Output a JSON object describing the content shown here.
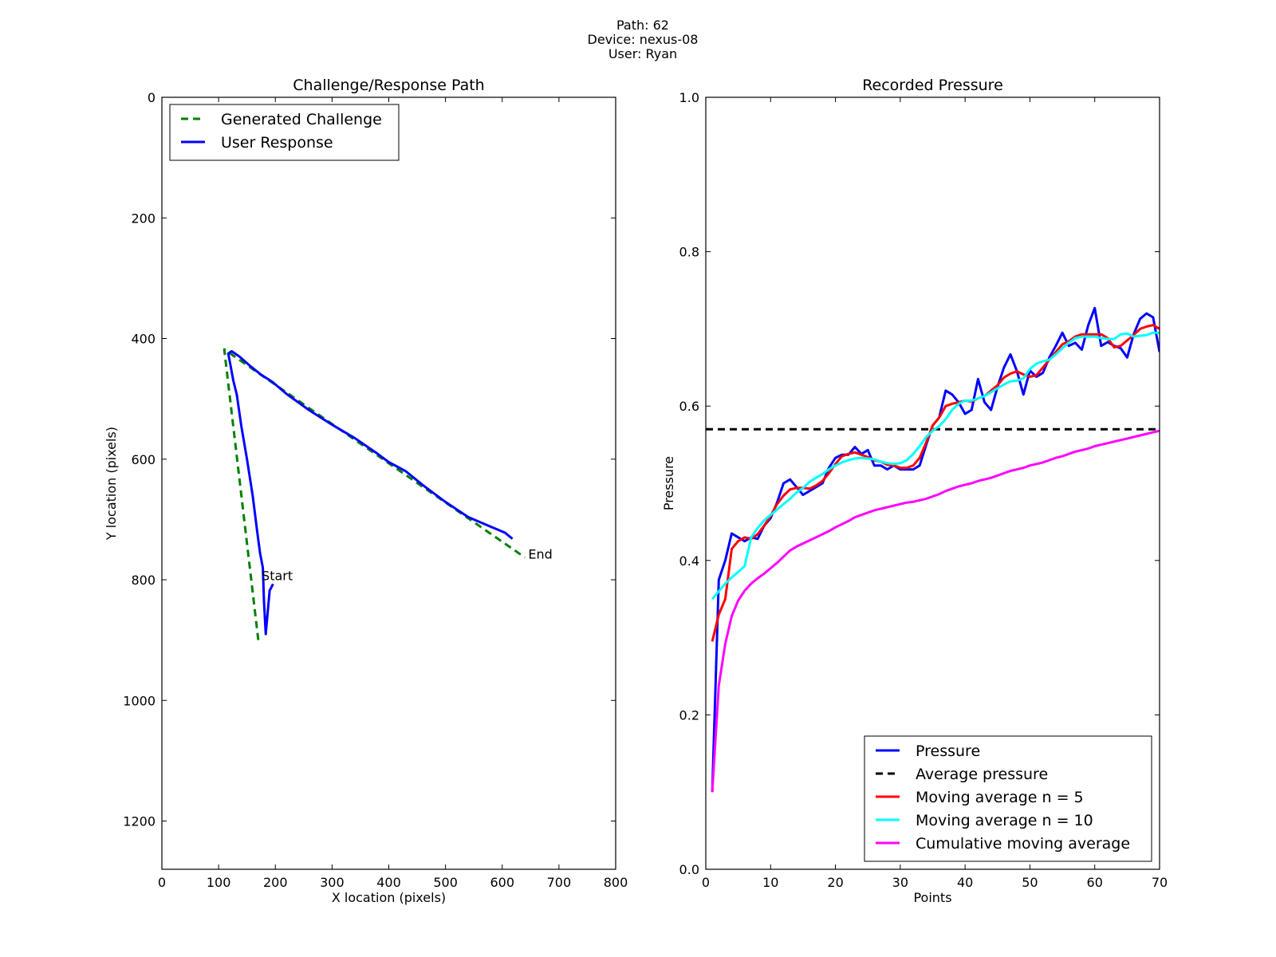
{
  "figure": {
    "suptitle_lines": [
      "Path: 62",
      "Device: nexus-08",
      "User: Ryan"
    ]
  },
  "chart_data": [
    {
      "type": "line",
      "title": "Challenge/Response Path",
      "xlabel": "X location (pixels)",
      "ylabel": "Y location (pixels)",
      "xlim": [
        0,
        800
      ],
      "ylim": [
        1280,
        0
      ],
      "y_inverted": true,
      "xticks": [
        0,
        100,
        200,
        300,
        400,
        500,
        600,
        700,
        800
      ],
      "yticks": [
        0,
        200,
        400,
        600,
        800,
        1000,
        1200
      ],
      "legend_position": "top-left",
      "series": [
        {
          "name": "Generated Challenge",
          "color": "#008000",
          "dash": "dashed",
          "points": [
            [
              170,
              900
            ],
            [
              110,
              418
            ],
            [
              640,
              763
            ]
          ]
        },
        {
          "name": "User Response",
          "color": "#0000ff",
          "dash": "solid",
          "points": [
            [
              196,
              807
            ],
            [
              190,
              818
            ],
            [
              183,
              890
            ],
            [
              180,
              835
            ],
            [
              178,
              780
            ],
            [
              173,
              755
            ],
            [
              168,
              720
            ],
            [
              160,
              660
            ],
            [
              150,
              600
            ],
            [
              140,
              545
            ],
            [
              132,
              493
            ],
            [
              126,
              470
            ],
            [
              121,
              445
            ],
            [
              117,
              425
            ],
            [
              123,
              421
            ],
            [
              137,
              430
            ],
            [
              155,
              445
            ],
            [
              175,
              460
            ],
            [
              195,
              472
            ],
            [
              220,
              492
            ],
            [
              260,
              519
            ],
            [
              300,
              543
            ],
            [
              340,
              565
            ],
            [
              380,
              591
            ],
            [
              400,
              605
            ],
            [
              430,
              620
            ],
            [
              460,
              643
            ],
            [
              500,
              671
            ],
            [
              540,
              696
            ],
            [
              580,
              712
            ],
            [
              605,
              722
            ],
            [
              618,
              732
            ]
          ]
        }
      ],
      "annotations": [
        {
          "text": "Start",
          "x": 173,
          "y": 793
        },
        {
          "text": "End",
          "x": 643,
          "y": 757
        }
      ]
    },
    {
      "type": "line",
      "title": "Recorded Pressure",
      "xlabel": "Points",
      "ylabel": "Pressure",
      "xlim": [
        0,
        70
      ],
      "ylim": [
        0.0,
        1.0
      ],
      "xticks": [
        0,
        10,
        20,
        30,
        40,
        50,
        60,
        70
      ],
      "yticks": [
        0.0,
        0.2,
        0.4,
        0.6,
        0.8,
        1.0
      ],
      "legend_position": "bottom-right",
      "series": [
        {
          "name": "Pressure",
          "color": "#0000ff",
          "dash": "solid",
          "x": [
            1,
            2,
            3,
            4,
            5,
            6,
            7,
            8,
            9,
            10,
            11,
            12,
            13,
            14,
            15,
            16,
            17,
            18,
            19,
            20,
            21,
            22,
            23,
            24,
            25,
            26,
            27,
            28,
            29,
            30,
            31,
            32,
            33,
            34,
            35,
            36,
            37,
            38,
            39,
            40,
            41,
            42,
            43,
            44,
            45,
            46,
            47,
            48,
            49,
            50,
            51,
            52,
            53,
            54,
            55,
            56,
            57,
            58,
            59,
            60,
            61,
            62,
            63,
            64,
            65,
            66,
            67,
            68,
            69,
            70
          ],
          "values": [
            0.1,
            0.375,
            0.4,
            0.435,
            0.43,
            0.425,
            0.43,
            0.428,
            0.445,
            0.455,
            0.475,
            0.5,
            0.505,
            0.495,
            0.485,
            0.49,
            0.495,
            0.5,
            0.52,
            0.533,
            0.537,
            0.537,
            0.547,
            0.538,
            0.543,
            0.523,
            0.523,
            0.518,
            0.523,
            0.518,
            0.518,
            0.518,
            0.523,
            0.55,
            0.575,
            0.585,
            0.62,
            0.615,
            0.605,
            0.59,
            0.595,
            0.635,
            0.605,
            0.595,
            0.625,
            0.65,
            0.667,
            0.645,
            0.615,
            0.646,
            0.638,
            0.643,
            0.663,
            0.678,
            0.695,
            0.678,
            0.682,
            0.673,
            0.705,
            0.727,
            0.678,
            0.683,
            0.678,
            0.675,
            0.663,
            0.693,
            0.713,
            0.72,
            0.715,
            0.67
          ]
        },
        {
          "name": "Average pressure",
          "color": "#000000",
          "dash": "dashed",
          "x": [
            0,
            70
          ],
          "values": [
            0.57,
            0.57
          ]
        },
        {
          "name": "Moving average n = 5",
          "color": "#ff0000",
          "dash": "solid",
          "x": [
            1,
            2,
            3,
            4,
            5,
            6,
            7,
            8,
            9,
            10,
            11,
            12,
            13,
            14,
            15,
            16,
            17,
            18,
            19,
            20,
            21,
            22,
            23,
            24,
            25,
            26,
            27,
            28,
            29,
            30,
            31,
            32,
            33,
            34,
            35,
            36,
            37,
            38,
            39,
            40,
            41,
            42,
            43,
            44,
            45,
            46,
            47,
            48,
            49,
            50,
            51,
            52,
            53,
            54,
            55,
            56,
            57,
            58,
            59,
            60,
            61,
            62,
            63,
            64,
            65,
            66,
            67,
            68,
            69,
            70
          ],
          "values": [
            0.295,
            0.33,
            0.35,
            0.415,
            0.425,
            0.43,
            0.428,
            0.434,
            0.445,
            0.458,
            0.473,
            0.484,
            0.492,
            0.494,
            0.494,
            0.493,
            0.497,
            0.503,
            0.513,
            0.525,
            0.535,
            0.538,
            0.54,
            0.537,
            0.534,
            0.53,
            0.528,
            0.524,
            0.523,
            0.52,
            0.52,
            0.523,
            0.533,
            0.553,
            0.575,
            0.585,
            0.6,
            0.603,
            0.605,
            0.607,
            0.606,
            0.61,
            0.613,
            0.62,
            0.627,
            0.637,
            0.642,
            0.645,
            0.641,
            0.638,
            0.64,
            0.65,
            0.66,
            0.67,
            0.68,
            0.684,
            0.69,
            0.693,
            0.693,
            0.693,
            0.693,
            0.688,
            0.676,
            0.678,
            0.685,
            0.692,
            0.7,
            0.703,
            0.705,
            0.7
          ]
        },
        {
          "name": "Moving average n = 10",
          "color": "#00ffff",
          "dash": "solid",
          "x": [
            1,
            2,
            3,
            4,
            5,
            6,
            7,
            8,
            9,
            10,
            11,
            12,
            13,
            14,
            15,
            16,
            17,
            18,
            19,
            20,
            21,
            22,
            23,
            24,
            25,
            26,
            27,
            28,
            29,
            30,
            31,
            32,
            33,
            34,
            35,
            36,
            37,
            38,
            39,
            40,
            41,
            42,
            43,
            44,
            45,
            46,
            47,
            48,
            49,
            50,
            51,
            52,
            53,
            54,
            55,
            56,
            57,
            58,
            59,
            60,
            61,
            62,
            63,
            64,
            65,
            66,
            67,
            68,
            69,
            70
          ],
          "values": [
            0.35,
            0.36,
            0.37,
            0.378,
            0.385,
            0.393,
            0.43,
            0.442,
            0.452,
            0.459,
            0.466,
            0.473,
            0.48,
            0.488,
            0.494,
            0.502,
            0.507,
            0.512,
            0.518,
            0.523,
            0.527,
            0.53,
            0.532,
            0.533,
            0.532,
            0.531,
            0.528,
            0.526,
            0.525,
            0.526,
            0.53,
            0.538,
            0.548,
            0.56,
            0.568,
            0.574,
            0.583,
            0.595,
            0.603,
            0.607,
            0.607,
            0.61,
            0.613,
            0.618,
            0.623,
            0.628,
            0.632,
            0.633,
            0.636,
            0.648,
            0.655,
            0.658,
            0.66,
            0.667,
            0.675,
            0.682,
            0.688,
            0.69,
            0.69,
            0.69,
            0.688,
            0.687,
            0.687,
            0.693,
            0.694,
            0.69,
            0.691,
            0.692,
            0.695,
            0.695
          ]
        },
        {
          "name": "Cumulative moving average",
          "color": "#ff00ff",
          "dash": "solid",
          "x": [
            1,
            2,
            3,
            4,
            5,
            6,
            7,
            8,
            9,
            10,
            11,
            12,
            13,
            14,
            15,
            16,
            17,
            18,
            19,
            20,
            21,
            22,
            23,
            24,
            25,
            26,
            27,
            28,
            29,
            30,
            31,
            32,
            33,
            34,
            35,
            36,
            37,
            38,
            39,
            40,
            41,
            42,
            43,
            44,
            45,
            46,
            47,
            48,
            49,
            50,
            51,
            52,
            53,
            54,
            55,
            56,
            57,
            58,
            59,
            60,
            61,
            62,
            63,
            64,
            65,
            66,
            67,
            68,
            69,
            70
          ],
          "values": [
            0.1,
            0.238,
            0.292,
            0.328,
            0.348,
            0.361,
            0.37,
            0.377,
            0.383,
            0.39,
            0.397,
            0.405,
            0.413,
            0.418,
            0.422,
            0.426,
            0.43,
            0.434,
            0.438,
            0.443,
            0.447,
            0.451,
            0.456,
            0.459,
            0.462,
            0.465,
            0.467,
            0.469,
            0.471,
            0.473,
            0.475,
            0.476,
            0.478,
            0.48,
            0.483,
            0.486,
            0.49,
            0.493,
            0.496,
            0.498,
            0.5,
            0.503,
            0.505,
            0.507,
            0.51,
            0.513,
            0.516,
            0.518,
            0.52,
            0.523,
            0.525,
            0.527,
            0.53,
            0.533,
            0.535,
            0.538,
            0.541,
            0.543,
            0.545,
            0.548,
            0.55,
            0.552,
            0.554,
            0.556,
            0.558,
            0.56,
            0.562,
            0.564,
            0.566,
            0.568
          ]
        }
      ]
    }
  ]
}
